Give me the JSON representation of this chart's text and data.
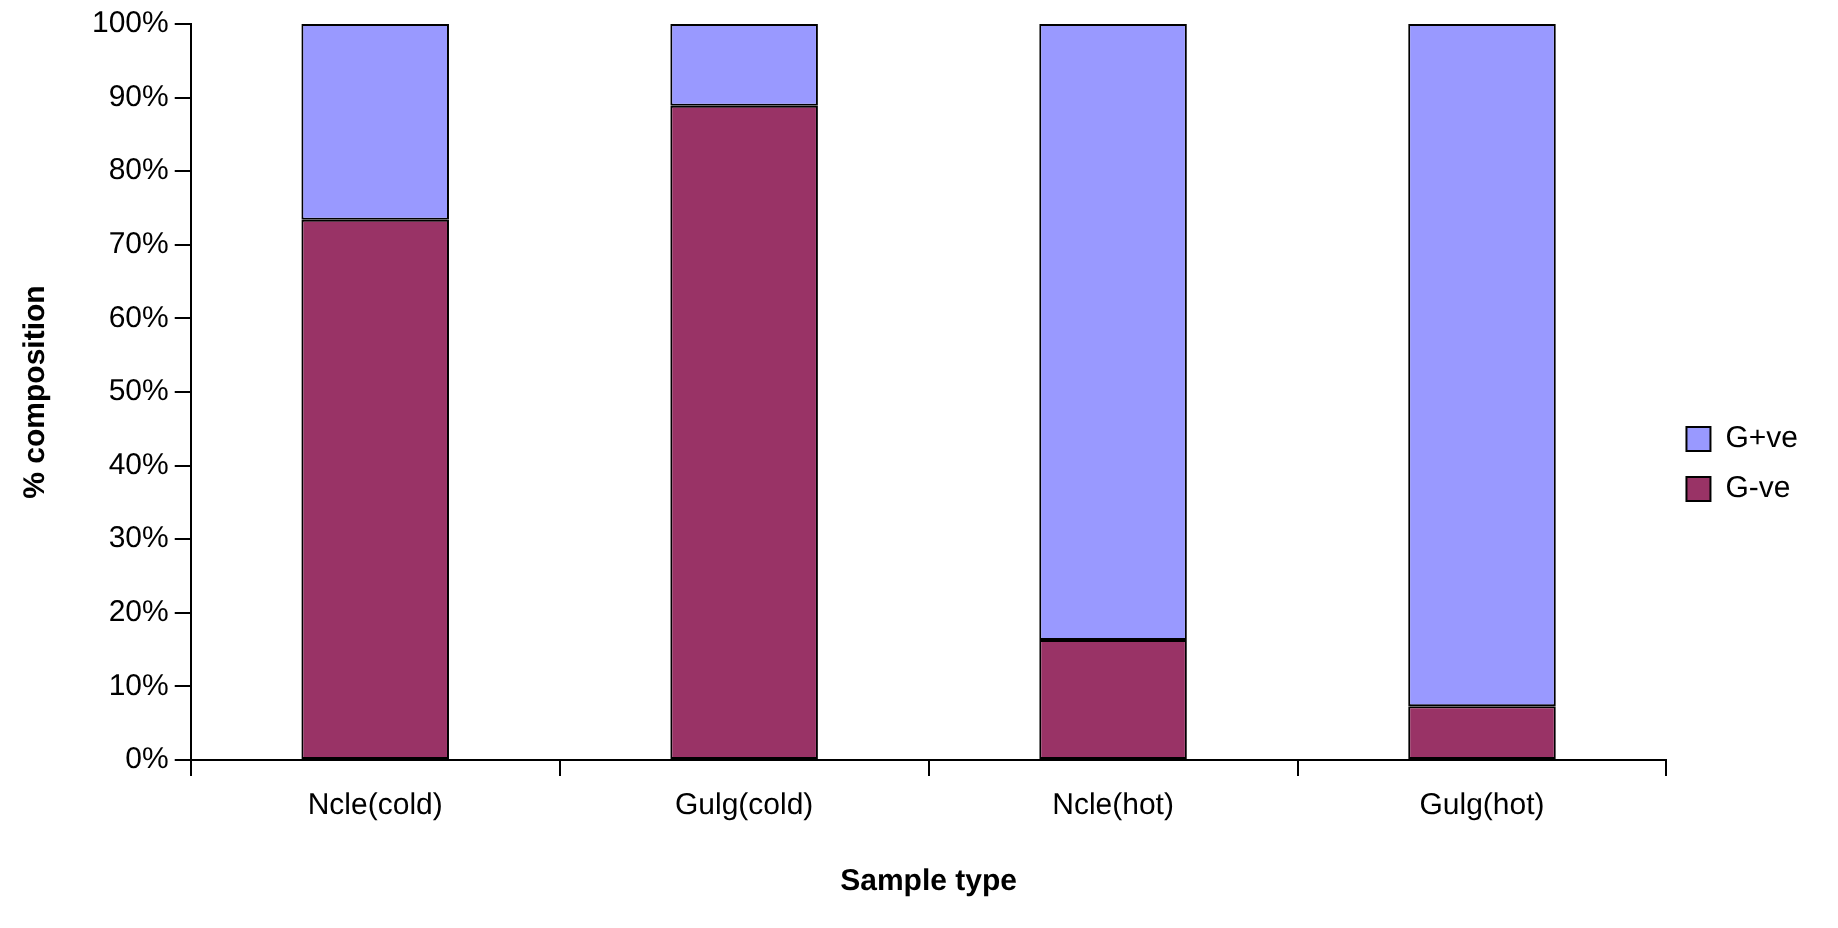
{
  "chart_data": {
    "type": "bar",
    "stacked": true,
    "xlabel": "Sample type",
    "ylabel": "% composition",
    "categories": [
      "Ncle(cold)",
      "Gulg(cold)",
      "Ncle(hot)",
      "Gulg(hot)"
    ],
    "series": [
      {
        "name": "G-ve",
        "color": "#993366",
        "values": [
          73.4,
          88.9,
          16.3,
          7.3
        ]
      },
      {
        "name": "G+ve",
        "color": "#9999ff",
        "values": [
          26.6,
          11.1,
          83.7,
          92.7
        ]
      }
    ],
    "ylim": [
      0,
      100
    ],
    "yticks": [
      {
        "value": 0,
        "label": "0%"
      },
      {
        "value": 10,
        "label": "10%"
      },
      {
        "value": 20,
        "label": "20%"
      },
      {
        "value": 30,
        "label": "30%"
      },
      {
        "value": 40,
        "label": "40%"
      },
      {
        "value": 50,
        "label": "50%"
      },
      {
        "value": 60,
        "label": "60%"
      },
      {
        "value": 70,
        "label": "70%"
      },
      {
        "value": 80,
        "label": "80%"
      },
      {
        "value": 90,
        "label": "90%"
      },
      {
        "value": 100,
        "label": "100%"
      }
    ],
    "grid": false,
    "legend": "right"
  }
}
